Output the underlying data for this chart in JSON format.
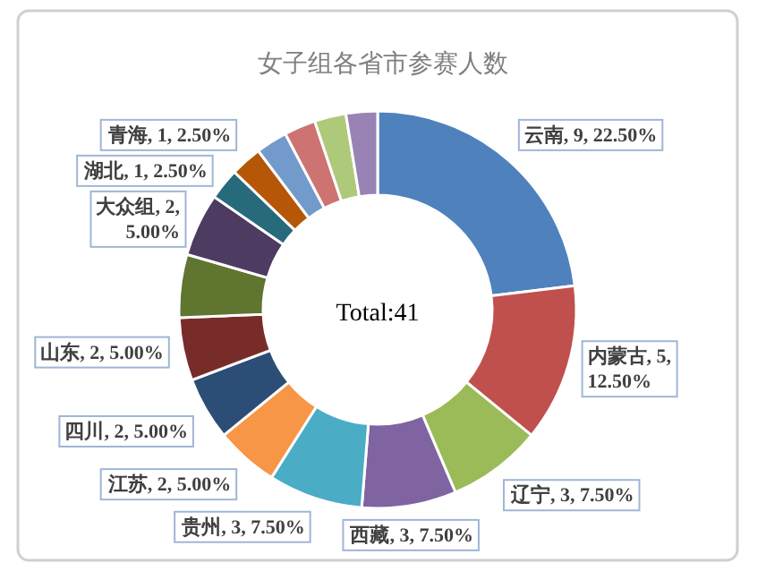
{
  "chart_data": {
    "type": "donut",
    "title": "女子组各省市参赛人数",
    "categories": [
      "云南",
      "内蒙古",
      "辽宁",
      "西藏",
      "贵州",
      "江苏",
      "四川",
      "山东",
      null,
      "大众组",
      "湖北",
      "青海",
      null,
      null,
      null,
      null
    ],
    "values": [
      9,
      5,
      3,
      3,
      3,
      2,
      2,
      2,
      2,
      2,
      1,
      1,
      1,
      1,
      1,
      1
    ],
    "value_labels": [
      "9, 22.50%",
      "5, 12.50%",
      "3, 7.50%",
      "3, 7.50%",
      "3, 7.50%",
      "2, 5.00%",
      "2, 5.00%",
      "2, 5.00%",
      null,
      "2, 5.00%",
      "1, 2.50%",
      "1, 2.50%",
      null,
      null,
      null,
      null
    ],
    "colors": [
      "#4f81bd",
      "#c0504d",
      "#9bbb59",
      "#8064a2",
      "#4bacc6",
      "#f79646",
      "#2c4d75",
      "#772c2a",
      "#5f7530",
      "#4d3b62",
      "#276a7c",
      "#b65708",
      "#729aca",
      "#cd7371",
      "#afc97a",
      "#9983b5"
    ],
    "annotations": [
      "Total:41"
    ]
  }
}
